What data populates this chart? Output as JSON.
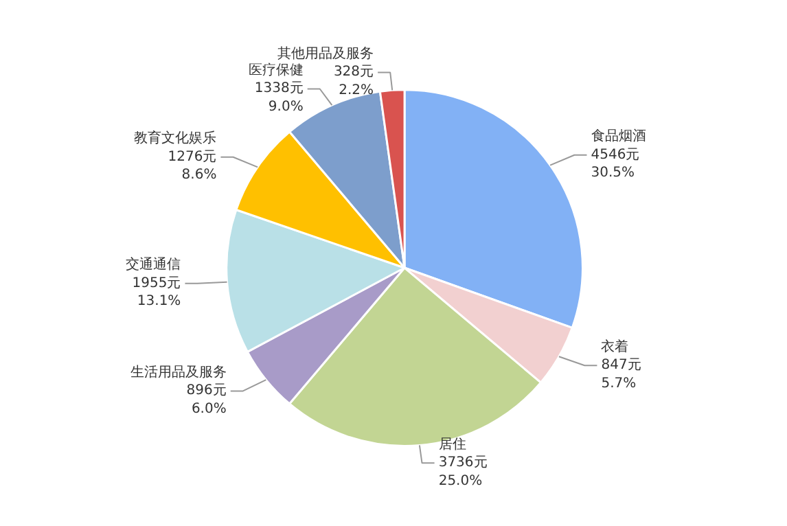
{
  "chart_data": {
    "type": "pie",
    "categories": [
      "食品烟酒",
      "衣着",
      "居住",
      "生活用品及服务",
      "交通通信",
      "教育文化娱乐",
      "医疗保健",
      "其他用品及服务"
    ],
    "values": [
      4546,
      847,
      3736,
      896,
      1955,
      1276,
      1338,
      328
    ],
    "value_labels": [
      "4546元\n30.5%",
      "847元\n5.7%",
      "3736元\n25.0%",
      "896元\n6.0%",
      "1955元\n13.1%",
      "1276元\n8.6%",
      "1338元\n9.0%",
      "328元\n2.2%"
    ],
    "colors": [
      "#82b1f5",
      "#f2d0d0",
      "#c2d593",
      "#a89bc8",
      "#b9e0e7",
      "#ffc000",
      "#7d9ecc",
      "#d9534f"
    ]
  }
}
